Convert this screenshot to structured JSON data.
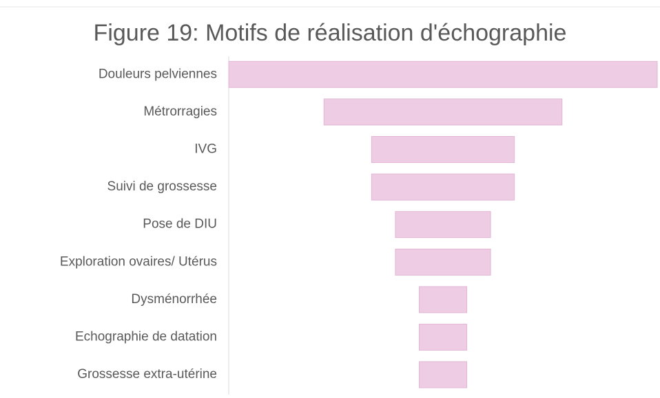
{
  "chart_data": {
    "type": "funnel",
    "title": "Figure 19: Motifs de réalisation d'échographie",
    "categories": [
      "Douleurs pelviennes",
      "Métrorragies",
      "IVG",
      "Suivi de grossesse",
      "Pose de DIU",
      "Exploration ovaires/ Utérus",
      "Dysménorrhée",
      "Echographie de datation",
      "Grossesse extra-utérine"
    ],
    "values": [
      9,
      5,
      3,
      3,
      2,
      2,
      1,
      1,
      1
    ],
    "color": "#eecde4"
  }
}
